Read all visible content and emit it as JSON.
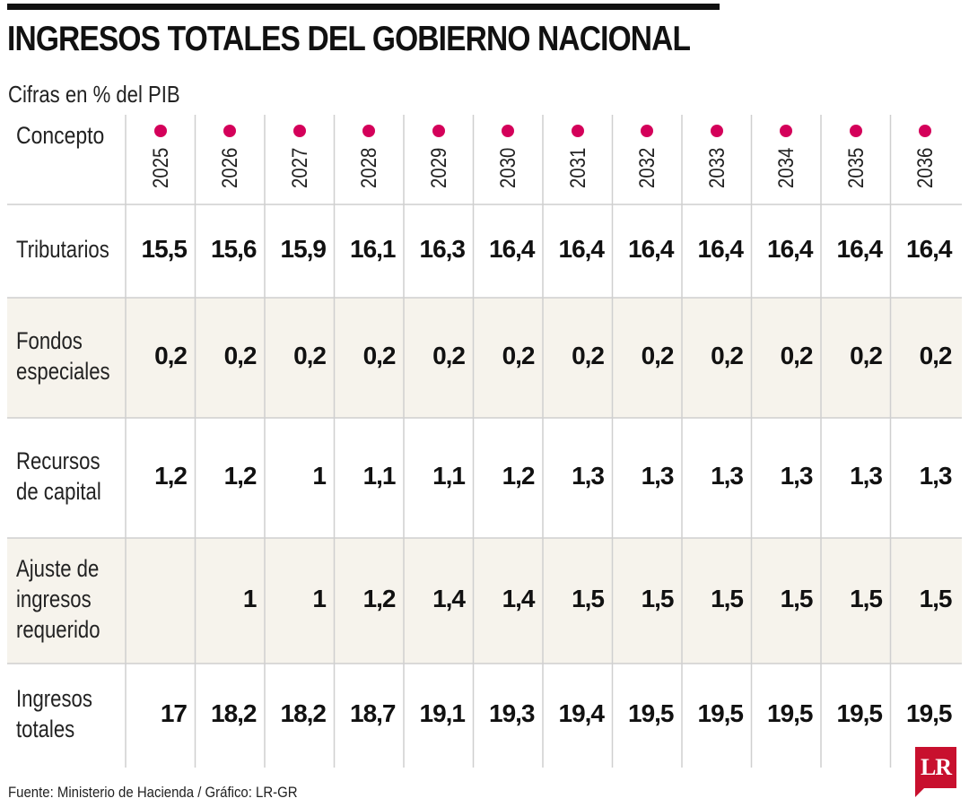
{
  "title": "INGRESOS TOTALES DEL GOBIERNO NACIONAL",
  "subtitle": "Cifras en % del PIB",
  "footer": "Fuente: Ministerio de Hacienda / Gráfico: LR-GR",
  "logo_text": "LR",
  "colors": {
    "accent": "#d4005a",
    "logo": "#c8102e",
    "band": "#f6f3ec",
    "grid": "#cfcfcf"
  },
  "chart_data": {
    "type": "table",
    "title": "INGRESOS TOTALES DEL GOBIERNO NACIONAL",
    "subtitle": "Cifras en % del PIB",
    "header_label": "Concepto",
    "columns": [
      "2025",
      "2026",
      "2027",
      "2028",
      "2029",
      "2030",
      "2031",
      "2032",
      "2033",
      "2034",
      "2035",
      "2036"
    ],
    "rows": [
      {
        "label_lines": [
          "Tributarios"
        ],
        "values": [
          "15,5",
          "15,6",
          "15,9",
          "16,1",
          "16,3",
          "16,4",
          "16,4",
          "16,4",
          "16,4",
          "16,4",
          "16,4",
          "16,4"
        ]
      },
      {
        "label_lines": [
          "Fondos",
          "especiales"
        ],
        "values": [
          "0,2",
          "0,2",
          "0,2",
          "0,2",
          "0,2",
          "0,2",
          "0,2",
          "0,2",
          "0,2",
          "0,2",
          "0,2",
          "0,2"
        ]
      },
      {
        "label_lines": [
          "Recursos",
          "de capital"
        ],
        "values": [
          "1,2",
          "1,2",
          "1",
          "1,1",
          "1,1",
          "1,2",
          "1,3",
          "1,3",
          "1,3",
          "1,3",
          "1,3",
          "1,3"
        ]
      },
      {
        "label_lines": [
          "Ajuste de",
          "ingresos",
          "requerido"
        ],
        "values": [
          "",
          "1",
          "1",
          "1,2",
          "1,4",
          "1,4",
          "1,5",
          "1,5",
          "1,5",
          "1,5",
          "1,5",
          "1,5"
        ]
      },
      {
        "label_lines": [
          "Ingresos",
          "totales"
        ],
        "values": [
          "17",
          "18,2",
          "18,2",
          "18,7",
          "19,1",
          "19,3",
          "19,4",
          "19,5",
          "19,5",
          "19,5",
          "19,5",
          "19,5"
        ]
      }
    ]
  }
}
